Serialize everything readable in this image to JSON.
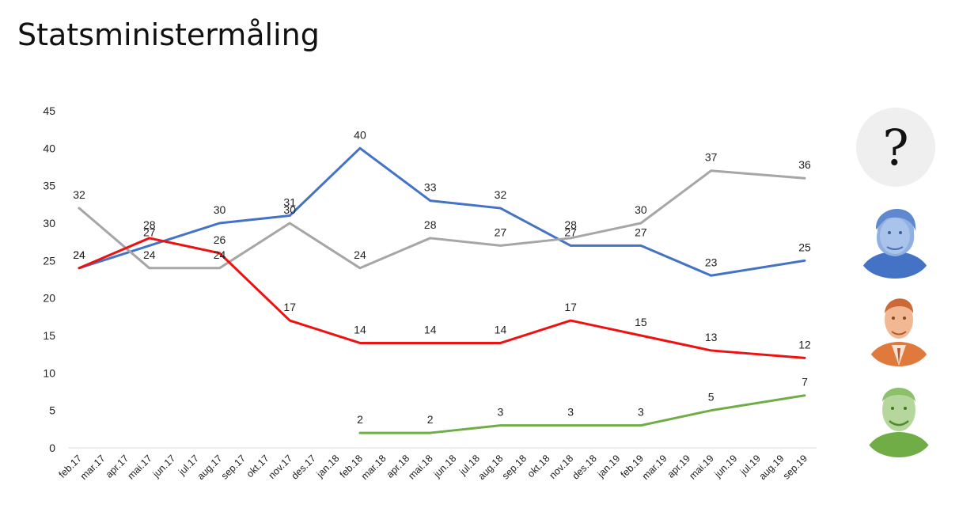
{
  "title": "Statsministermåling",
  "chart_data": {
    "type": "line",
    "title": "Statsministermåling",
    "ylim": [
      0,
      45
    ],
    "yticks": [
      0,
      5,
      10,
      15,
      20,
      25,
      30,
      35,
      40,
      45
    ],
    "grid": false,
    "categories": [
      "feb.17",
      "mar.17",
      "apr.17",
      "mai.17",
      "jun.17",
      "jul.17",
      "aug.17",
      "sep.17",
      "okt.17",
      "nov.17",
      "des.17",
      "jan.18",
      "feb.18",
      "mar.18",
      "apr.18",
      "mai.18",
      "jun.18",
      "jul.18",
      "aug.18",
      "sep.18",
      "okt.18",
      "nov.18",
      "des.18",
      "jan.19",
      "feb.19",
      "mar.19",
      "apr.19",
      "mai.19",
      "jun.19",
      "jul.19",
      "aug.19",
      "sep.19"
    ],
    "series": [
      {
        "color": "#4472c4",
        "points": [
          [
            0,
            24
          ],
          [
            3,
            27
          ],
          [
            6,
            30
          ],
          [
            9,
            31
          ],
          [
            12,
            40
          ],
          [
            15,
            33
          ],
          [
            18,
            32
          ],
          [
            21,
            27
          ],
          [
            24,
            27
          ],
          [
            27,
            23
          ],
          [
            31,
            25
          ]
        ]
      },
      {
        "color": "#a6a6a6",
        "points": [
          [
            0,
            32
          ],
          [
            3,
            24
          ],
          [
            6,
            24
          ],
          [
            9,
            30
          ],
          [
            12,
            24
          ],
          [
            15,
            28
          ],
          [
            18,
            27
          ],
          [
            21,
            28
          ],
          [
            24,
            30
          ],
          [
            27,
            37
          ],
          [
            31,
            36
          ]
        ]
      },
      {
        "color": "#ee1111",
        "points": [
          [
            0,
            24
          ],
          [
            3,
            28
          ],
          [
            6,
            26
          ],
          [
            9,
            17
          ],
          [
            12,
            14
          ],
          [
            15,
            14
          ],
          [
            18,
            14
          ],
          [
            21,
            17
          ],
          [
            24,
            15
          ],
          [
            27,
            13
          ],
          [
            31,
            12
          ]
        ]
      },
      {
        "color": "#70ad47",
        "points": [
          [
            12,
            2
          ],
          [
            15,
            2
          ],
          [
            18,
            3
          ],
          [
            21,
            3
          ],
          [
            24,
            3
          ],
          [
            27,
            5
          ],
          [
            31,
            7
          ]
        ]
      }
    ]
  },
  "legend_markers": [
    {
      "symbol": "?",
      "color": "#efefef"
    },
    {
      "icon": "portrait-blue-icon",
      "color": "#4472c4"
    },
    {
      "icon": "portrait-orange-icon",
      "color": "#e07a3c"
    },
    {
      "icon": "portrait-green-icon",
      "color": "#70ad47"
    }
  ]
}
